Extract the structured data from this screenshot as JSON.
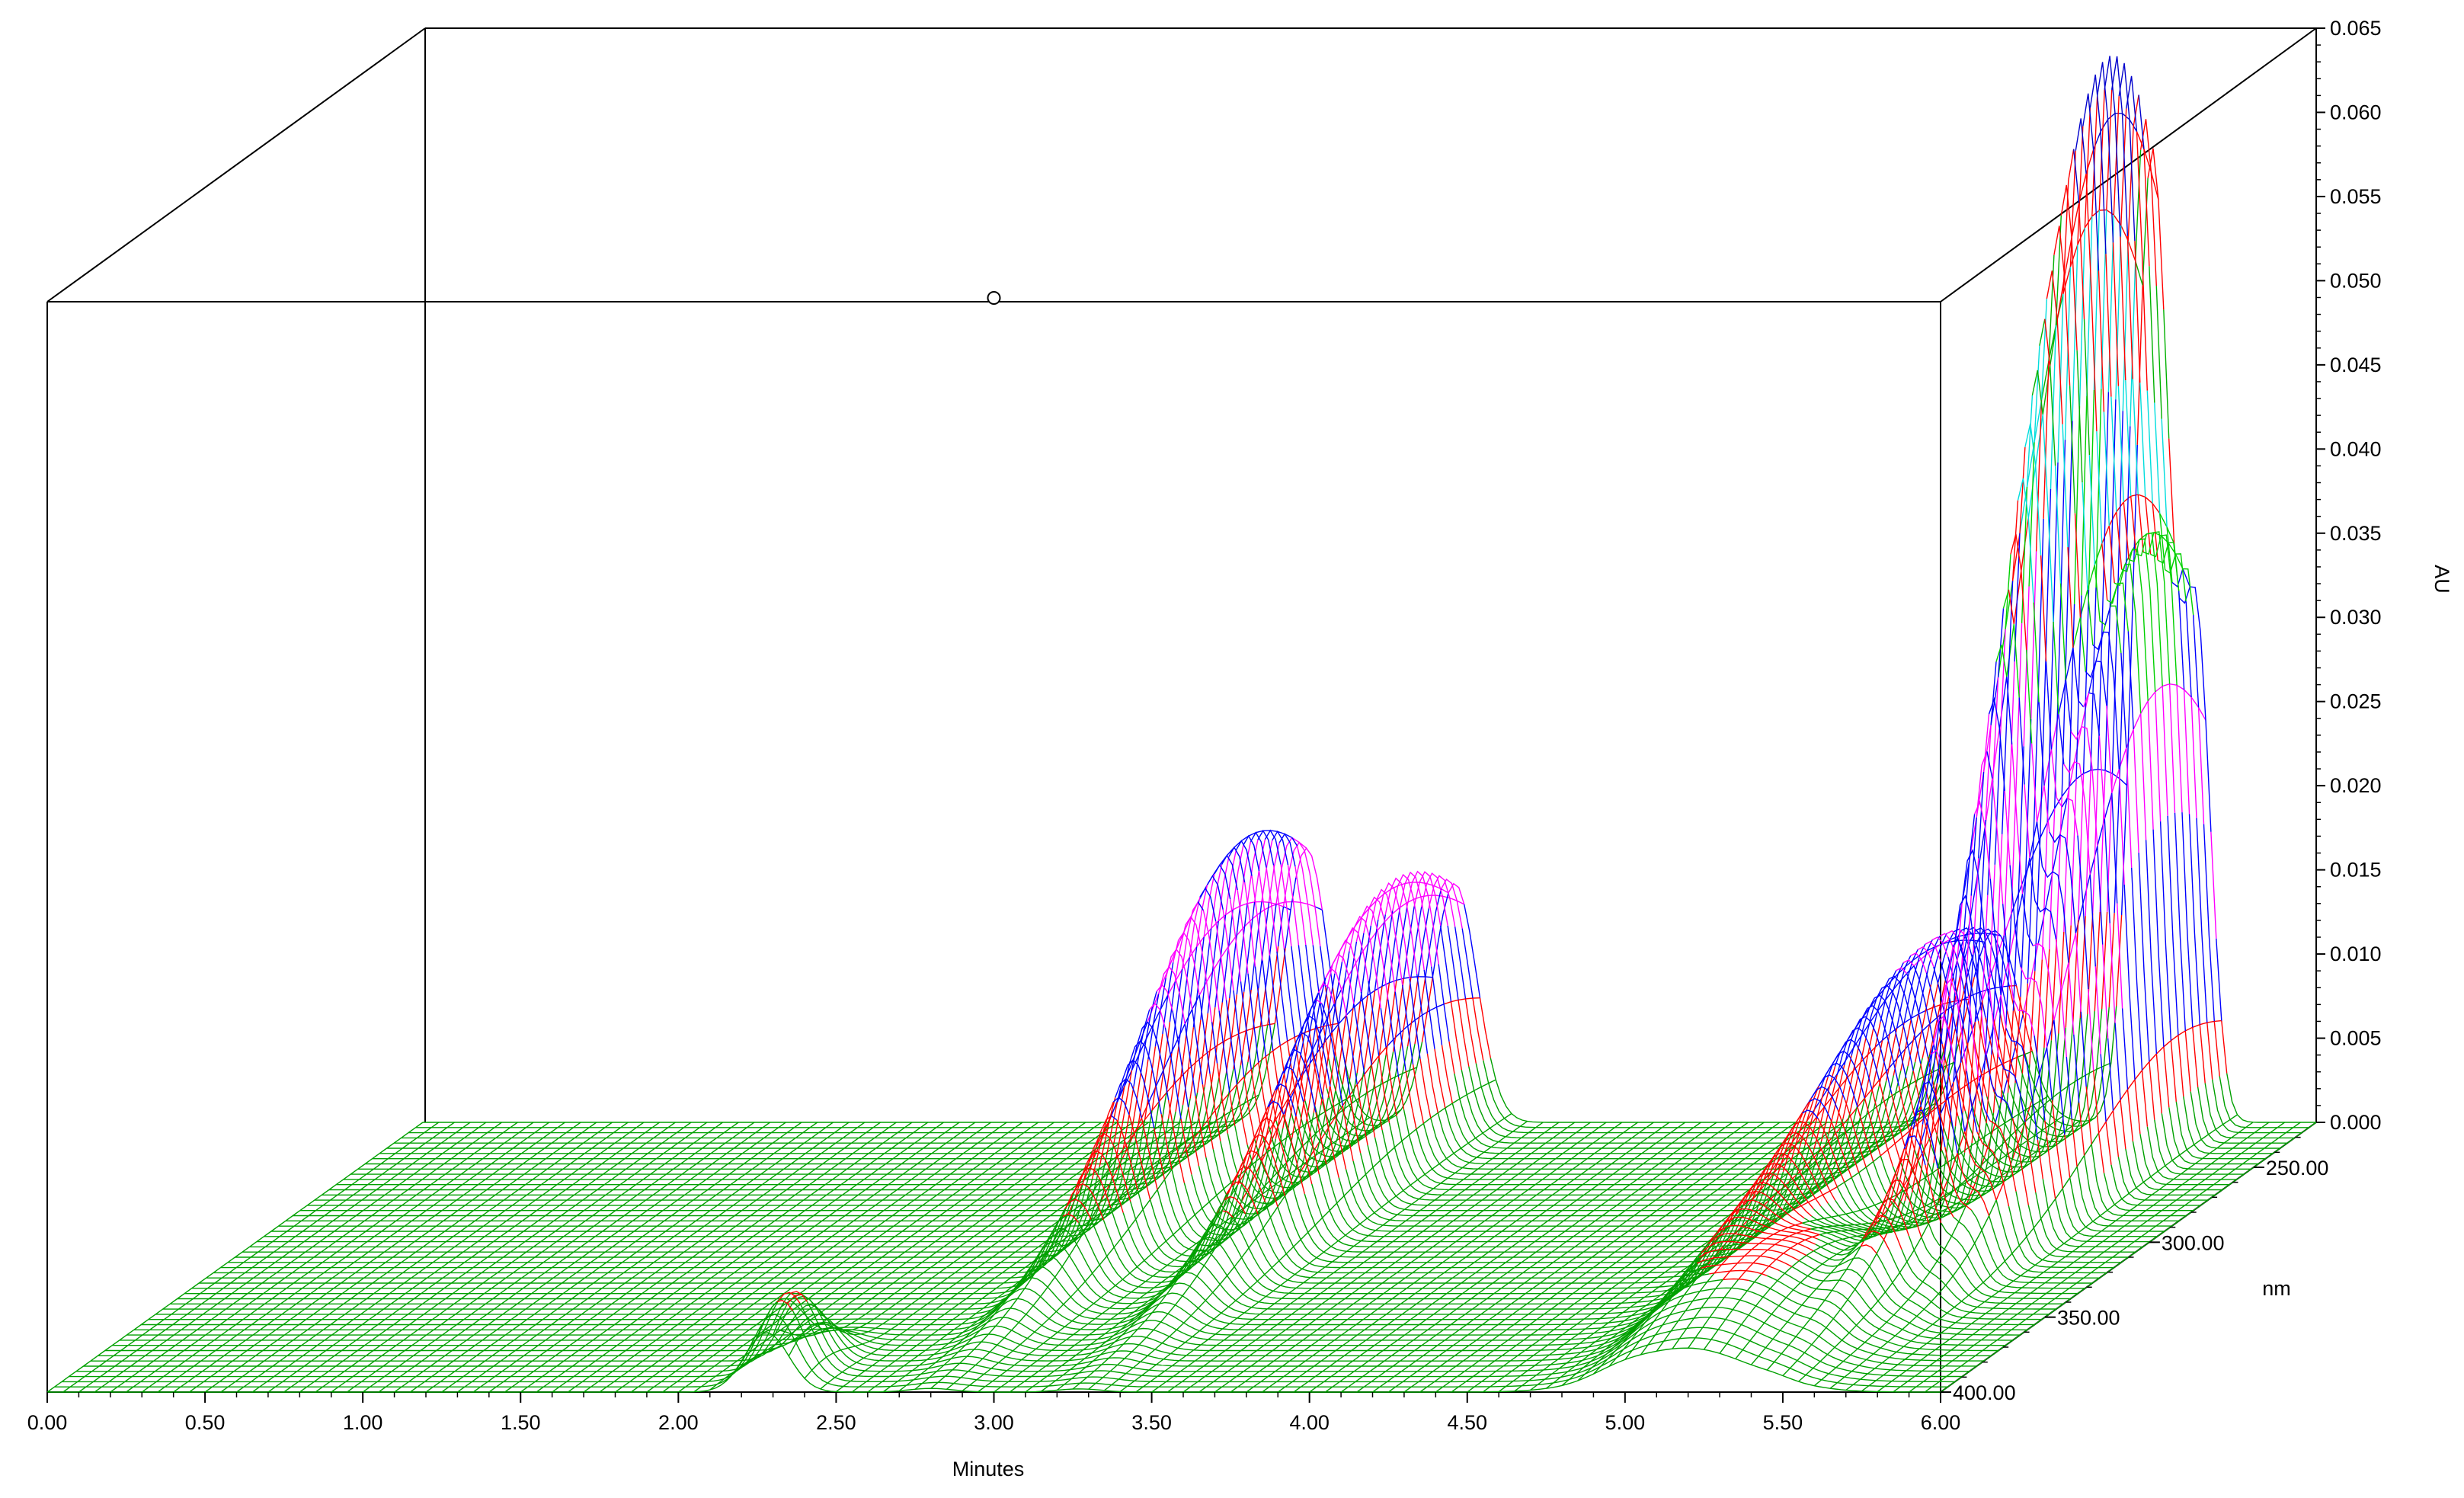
{
  "chart_data": {
    "type": "3d-surface",
    "title": "",
    "xlabel": "Minutes",
    "ylabel": "nm",
    "zlabel": "AU",
    "xlim": [
      0,
      6
    ],
    "ylim": [
      400,
      220
    ],
    "zlim": [
      0,
      0.065
    ],
    "x_ticks": [
      "0.00",
      "0.50",
      "1.00",
      "1.50",
      "2.00",
      "2.50",
      "3.00",
      "3.50",
      "4.00",
      "4.50",
      "5.00",
      "5.50",
      "6.00"
    ],
    "y_ticks": [
      "250.00",
      "300.00",
      "350.00",
      "400.00"
    ],
    "z_ticks": [
      "0.000",
      "0.005",
      "0.010",
      "0.015",
      "0.020",
      "0.025",
      "0.030",
      "0.035",
      "0.040",
      "0.045",
      "0.050",
      "0.055",
      "0.060",
      "0.065"
    ],
    "cursor_time": 3.0,
    "peaks": [
      {
        "time": 2.28,
        "nm_center": 390,
        "nm_width": 12,
        "height": 0.005,
        "width": 0.07
      },
      {
        "time": 2.8,
        "nm_center": 250,
        "nm_width": 50,
        "height": 0.0195,
        "width": 0.07
      },
      {
        "time": 3.27,
        "nm_center": 250,
        "nm_width": 50,
        "height": 0.017,
        "width": 0.07
      },
      {
        "time": 4.98,
        "nm_center": 252,
        "nm_width": 55,
        "height": 0.0135,
        "width": 0.085
      },
      {
        "time": 5.48,
        "nm_center": 242,
        "nm_width": 45,
        "height": 0.065,
        "width": 0.055
      },
      {
        "time": 5.62,
        "nm_center": 242,
        "nm_width": 40,
        "height": 0.034,
        "width": 0.045
      },
      {
        "time": 5.2,
        "nm_center": 360,
        "nm_width": 35,
        "height": 0.005,
        "width": 0.2
      }
    ],
    "color_bands": [
      {
        "max": 0.0045,
        "color": "#00a000"
      },
      {
        "max": 0.0085,
        "color": "#ff0000"
      },
      {
        "max": 0.013,
        "color": "#0000ff"
      },
      {
        "max": 0.0175,
        "color": "#ff00ff"
      },
      {
        "max": 0.024,
        "color": "#0000ff"
      },
      {
        "max": 0.029,
        "color": "#ff00ff"
      },
      {
        "max": 0.033,
        "color": "#0000ff"
      },
      {
        "max": 0.037,
        "color": "#00d000"
      },
      {
        "max": 0.041,
        "color": "#ff0000"
      },
      {
        "max": 0.0475,
        "color": "#00dddd"
      },
      {
        "max": 0.052,
        "color": "#00b000"
      },
      {
        "max": 0.06,
        "color": "#ff0000"
      },
      {
        "max": 1,
        "color": "#0000cc"
      }
    ]
  }
}
